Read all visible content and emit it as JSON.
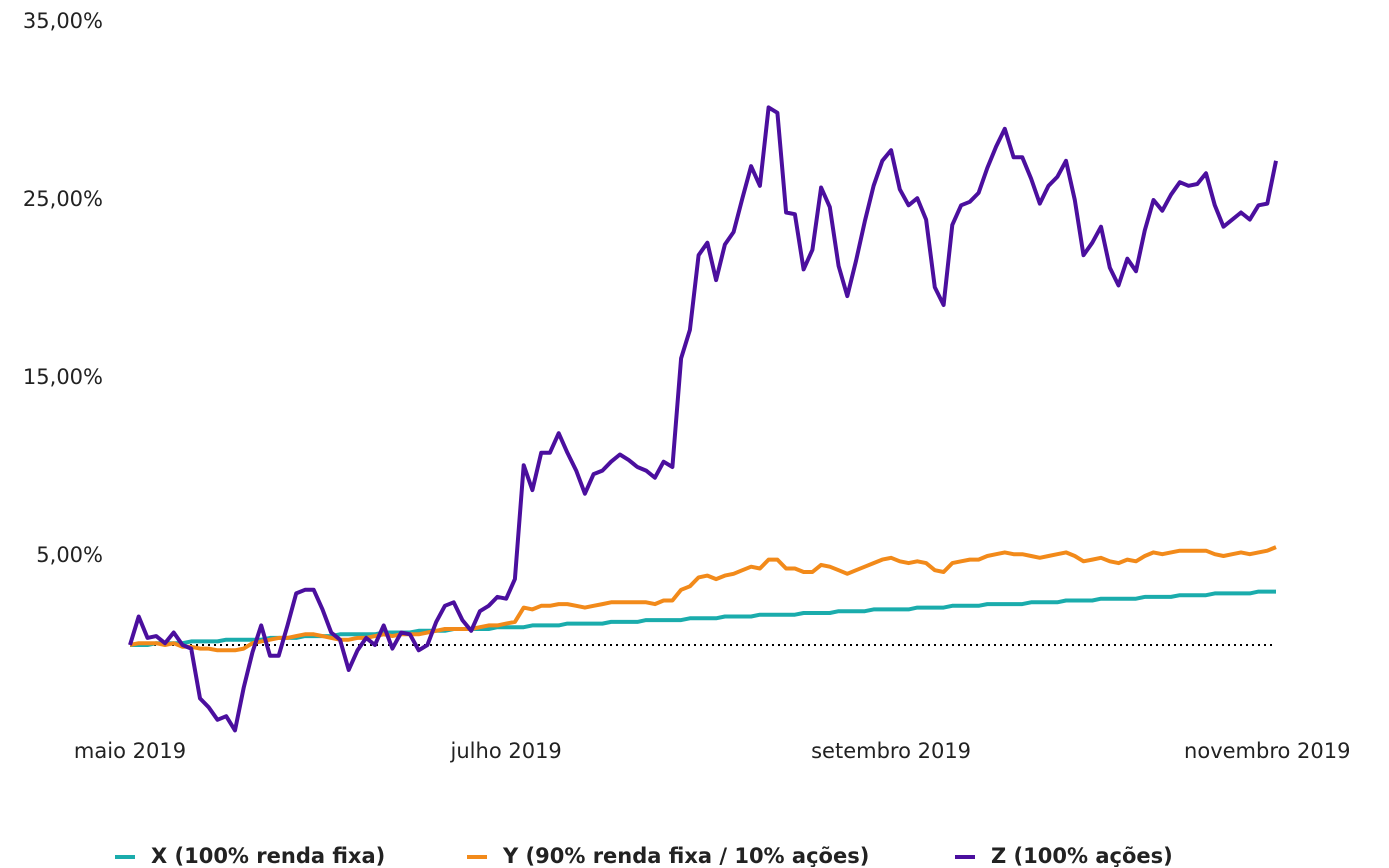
{
  "chart_data": {
    "type": "line",
    "categories": [
      "maio 2019",
      null,
      null,
      null,
      null,
      null,
      null,
      null,
      null,
      null,
      null,
      null,
      null,
      null,
      null,
      null,
      null,
      null,
      null,
      null,
      null,
      null,
      null,
      null,
      null,
      null,
      null,
      null,
      null,
      null,
      null,
      null,
      null,
      null,
      null,
      null,
      null,
      null,
      null,
      null,
      null,
      null,
      null,
      "julho 2019",
      null,
      null,
      null,
      null,
      null,
      null,
      null,
      null,
      null,
      null,
      null,
      null,
      null,
      null,
      null,
      null,
      null,
      null,
      null,
      null,
      null,
      null,
      null,
      null,
      null,
      null,
      null,
      null,
      null,
      null,
      null,
      null,
      null,
      null,
      null,
      null,
      null,
      null,
      null,
      null,
      null,
      null,
      null,
      "setembro 2019",
      null,
      null,
      null,
      null,
      null,
      null,
      null,
      null,
      null,
      null,
      null,
      null,
      null,
      null,
      null,
      null,
      null,
      null,
      null,
      null,
      null,
      null,
      null,
      null,
      null,
      null,
      null,
      null,
      null,
      null,
      null,
      null,
      null,
      null,
      null,
      null,
      null,
      null,
      null,
      null,
      null,
      null,
      "novembro 2019",
      null
    ],
    "series": [
      {
        "name": "X (100% renda fixa)",
        "color": "#1aacac",
        "values": [
          0.0,
          0.0,
          0.0,
          0.1,
          0.1,
          0.1,
          0.1,
          0.2,
          0.2,
          0.2,
          0.2,
          0.3,
          0.3,
          0.3,
          0.3,
          0.3,
          0.4,
          0.4,
          0.4,
          0.4,
          0.5,
          0.5,
          0.5,
          0.5,
          0.6,
          0.6,
          0.6,
          0.6,
          0.6,
          0.7,
          0.7,
          0.7,
          0.7,
          0.8,
          0.8,
          0.8,
          0.8,
          0.9,
          0.9,
          0.9,
          0.9,
          0.9,
          1.0,
          1.0,
          1.0,
          1.0,
          1.1,
          1.1,
          1.1,
          1.1,
          1.2,
          1.2,
          1.2,
          1.2,
          1.2,
          1.3,
          1.3,
          1.3,
          1.3,
          1.4,
          1.4,
          1.4,
          1.4,
          1.4,
          1.5,
          1.5,
          1.5,
          1.5,
          1.6,
          1.6,
          1.6,
          1.6,
          1.7,
          1.7,
          1.7,
          1.7,
          1.7,
          1.8,
          1.8,
          1.8,
          1.8,
          1.9,
          1.9,
          1.9,
          1.9,
          2.0,
          2.0,
          2.0,
          2.0,
          2.0,
          2.1,
          2.1,
          2.1,
          2.1,
          2.2,
          2.2,
          2.2,
          2.2,
          2.3,
          2.3,
          2.3,
          2.3,
          2.3,
          2.4,
          2.4,
          2.4,
          2.4,
          2.5,
          2.5,
          2.5,
          2.5,
          2.6,
          2.6,
          2.6,
          2.6,
          2.6,
          2.7,
          2.7,
          2.7,
          2.7,
          2.8,
          2.8,
          2.8,
          2.8,
          2.9,
          2.9,
          2.9,
          2.9,
          2.9,
          3.0,
          3.0,
          3.0
        ]
      },
      {
        "name": "Y (90% renda fixa / 10% ações)",
        "color": "#f28a1a",
        "values": [
          0,
          0.1,
          0.1,
          0.1,
          0.0,
          0.1,
          -0.1,
          -0.1,
          -0.2,
          -0.2,
          -0.3,
          -0.3,
          -0.3,
          -0.2,
          0.1,
          0.2,
          0.3,
          0.4,
          0.4,
          0.5,
          0.6,
          0.6,
          0.5,
          0.4,
          0.3,
          0.3,
          0.4,
          0.4,
          0.5,
          0.6,
          0.5,
          0.6,
          0.6,
          0.6,
          0.7,
          0.8,
          0.9,
          0.9,
          0.9,
          0.9,
          1.0,
          1.1,
          1.1,
          1.2,
          1.3,
          2.1,
          2.0,
          2.2,
          2.2,
          2.3,
          2.3,
          2.2,
          2.1,
          2.2,
          2.3,
          2.4,
          2.4,
          2.4,
          2.4,
          2.4,
          2.3,
          2.5,
          2.5,
          3.1,
          3.3,
          3.8,
          3.9,
          3.7,
          3.9,
          4.0,
          4.2,
          4.4,
          4.3,
          4.8,
          4.8,
          4.3,
          4.3,
          4.1,
          4.1,
          4.5,
          4.4,
          4.2,
          4.0,
          4.2,
          4.4,
          4.6,
          4.8,
          4.9,
          4.7,
          4.6,
          4.7,
          4.6,
          4.2,
          4.1,
          4.6,
          4.7,
          4.8,
          4.8,
          5.0,
          5.1,
          5.2,
          5.1,
          5.1,
          5.0,
          4.9,
          5.0,
          5.1,
          5.2,
          5.0,
          4.7,
          4.8,
          4.9,
          4.7,
          4.6,
          4.8,
          4.7,
          5.0,
          5.2,
          5.1,
          5.2,
          5.3,
          5.3,
          5.3,
          5.3,
          5.1,
          5.0,
          5.1,
          5.2,
          5.1,
          5.2,
          5.3,
          5.5
        ]
      },
      {
        "name": "Z (100% ações)",
        "color": "#4b0f9e",
        "values": [
          0.0,
          1.6,
          0.4,
          0.5,
          0.1,
          0.7,
          0,
          -0.2,
          -3.0,
          -3.5,
          -4.2,
          -4.0,
          -4.8,
          -2.4,
          -0.4,
          1.1,
          -0.6,
          -0.6,
          1.1,
          2.9,
          3.1,
          3.1,
          2.0,
          0.7,
          0.3,
          -1.4,
          -0.3,
          0.4,
          0,
          1.1,
          -0.2,
          0.7,
          0.6,
          -0.3,
          0,
          1.3,
          2.2,
          2.4,
          1.4,
          0.8,
          1.9,
          2.2,
          2.7,
          2.6,
          3.7,
          10.1,
          8.7,
          10.8,
          10.8,
          11.9,
          10.8,
          9.8,
          8.5,
          9.6,
          9.8,
          10.3,
          10.7,
          10.4,
          10.0,
          9.8,
          9.4,
          10.3,
          10.0,
          16.1,
          17.7,
          21.9,
          22.6,
          20.5,
          22.5,
          23.2,
          25.1,
          26.9,
          25.8,
          30.2,
          29.9,
          24.3,
          24.2,
          21.1,
          22.2,
          25.7,
          24.6,
          21.3,
          19.6,
          21.6,
          23.8,
          25.8,
          27.2,
          27.8,
          25.6,
          24.7,
          25.1,
          23.9,
          20.1,
          19.1,
          23.6,
          24.7,
          24.9,
          25.4,
          26.8,
          28.0,
          29.0,
          27.4,
          27.4,
          26.2,
          24.8,
          25.8,
          26.3,
          27.2,
          25.0,
          21.9,
          22.6,
          23.5,
          21.2,
          20.2,
          21.7,
          21.0,
          23.3,
          25.0,
          24.4,
          25.3,
          26.0,
          25.8,
          25.9,
          26.5,
          24.7,
          23.5,
          23.9,
          24.3,
          23.9,
          24.7,
          24.8,
          27.2
        ]
      }
    ],
    "ylim": [
      -5,
      35
    ],
    "yticks": [
      {
        "value": 5,
        "label": "5,00%"
      },
      {
        "value": 15,
        "label": "15,00%"
      },
      {
        "value": 25,
        "label": "25,00%"
      },
      {
        "value": 35,
        "label": "35,00%"
      }
    ],
    "grid": false,
    "legend": "bottom"
  }
}
